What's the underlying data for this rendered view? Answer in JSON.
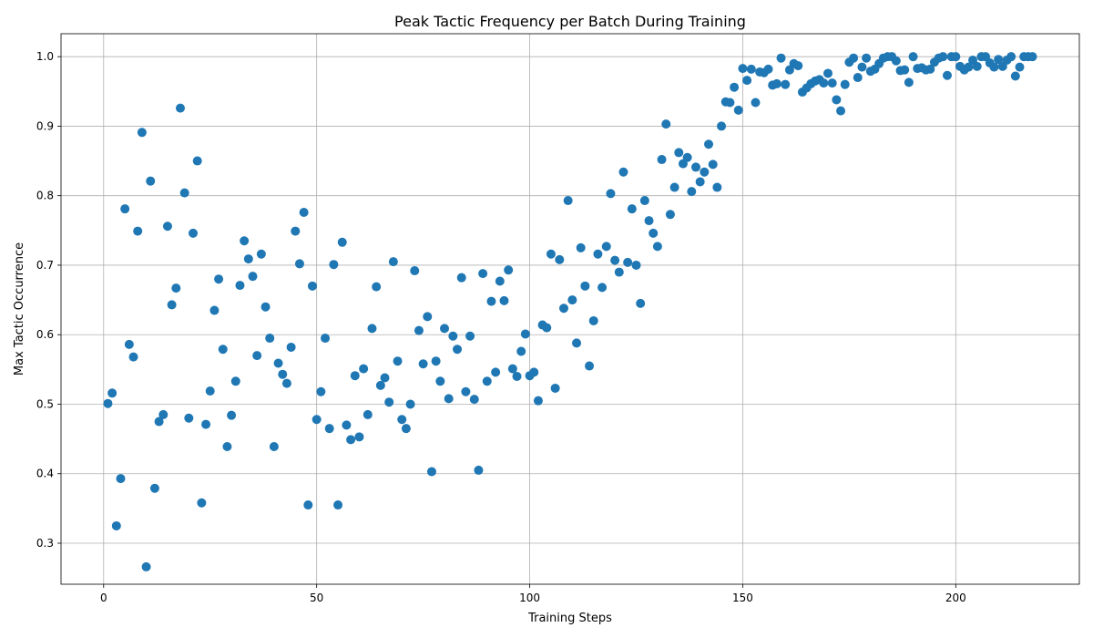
{
  "chart_data": {
    "type": "scatter",
    "title": "Peak Tactic Frequency per Batch During Training",
    "xlabel": "Training Steps",
    "ylabel": "Max Tactic Occurrence",
    "xlim": [
      -10,
      229
    ],
    "ylim": [
      0.241,
      1.033
    ],
    "xticks": [
      0,
      50,
      100,
      150,
      200
    ],
    "yticks": [
      0.3,
      0.4,
      0.5,
      0.6,
      0.7,
      0.8,
      0.9,
      1.0
    ],
    "grid": true,
    "marker_color": "#1f77b4",
    "series": [
      {
        "points": [
          [
            1,
            0.501
          ],
          [
            2,
            0.516
          ],
          [
            3,
            0.325
          ],
          [
            4,
            0.393
          ],
          [
            5,
            0.781
          ],
          [
            6,
            0.586
          ],
          [
            7,
            0.568
          ],
          [
            8,
            0.749
          ],
          [
            9,
            0.891
          ],
          [
            10,
            0.266
          ],
          [
            11,
            0.821
          ],
          [
            12,
            0.379
          ],
          [
            13,
            0.475
          ],
          [
            14,
            0.485
          ],
          [
            15,
            0.756
          ],
          [
            16,
            0.643
          ],
          [
            17,
            0.667
          ],
          [
            18,
            0.926
          ],
          [
            19,
            0.804
          ],
          [
            20,
            0.48
          ],
          [
            21,
            0.746
          ],
          [
            22,
            0.85
          ],
          [
            23,
            0.358
          ],
          [
            24,
            0.471
          ],
          [
            25,
            0.519
          ],
          [
            26,
            0.635
          ],
          [
            27,
            0.68
          ],
          [
            28,
            0.579
          ],
          [
            29,
            0.439
          ],
          [
            30,
            0.484
          ],
          [
            31,
            0.533
          ],
          [
            32,
            0.671
          ],
          [
            33,
            0.735
          ],
          [
            34,
            0.709
          ],
          [
            35,
            0.684
          ],
          [
            36,
            0.57
          ],
          [
            37,
            0.716
          ],
          [
            38,
            0.64
          ],
          [
            39,
            0.595
          ],
          [
            40,
            0.439
          ],
          [
            41,
            0.559
          ],
          [
            42,
            0.543
          ],
          [
            43,
            0.53
          ],
          [
            44,
            0.582
          ],
          [
            45,
            0.749
          ],
          [
            46,
            0.702
          ],
          [
            47,
            0.776
          ],
          [
            48,
            0.355
          ],
          [
            49,
            0.67
          ],
          [
            50,
            0.478
          ],
          [
            51,
            0.518
          ],
          [
            52,
            0.595
          ],
          [
            53,
            0.465
          ],
          [
            54,
            0.701
          ],
          [
            55,
            0.355
          ],
          [
            56,
            0.733
          ],
          [
            57,
            0.47
          ],
          [
            58,
            0.449
          ],
          [
            59,
            0.541
          ],
          [
            60,
            0.453
          ],
          [
            61,
            0.551
          ],
          [
            62,
            0.485
          ],
          [
            63,
            0.609
          ],
          [
            64,
            0.669
          ],
          [
            65,
            0.527
          ],
          [
            66,
            0.538
          ],
          [
            67,
            0.503
          ],
          [
            68,
            0.705
          ],
          [
            69,
            0.562
          ],
          [
            70,
            0.478
          ],
          [
            71,
            0.465
          ],
          [
            72,
            0.5
          ],
          [
            73,
            0.692
          ],
          [
            74,
            0.606
          ],
          [
            75,
            0.558
          ],
          [
            76,
            0.626
          ],
          [
            77,
            0.403
          ],
          [
            78,
            0.562
          ],
          [
            79,
            0.533
          ],
          [
            80,
            0.609
          ],
          [
            81,
            0.508
          ],
          [
            82,
            0.598
          ],
          [
            83,
            0.579
          ],
          [
            84,
            0.682
          ],
          [
            85,
            0.518
          ],
          [
            86,
            0.598
          ],
          [
            87,
            0.507
          ],
          [
            88,
            0.405
          ],
          [
            89,
            0.688
          ],
          [
            90,
            0.533
          ],
          [
            91,
            0.648
          ],
          [
            92,
            0.546
          ],
          [
            93,
            0.677
          ],
          [
            94,
            0.649
          ],
          [
            95,
            0.693
          ],
          [
            96,
            0.551
          ],
          [
            97,
            0.54
          ],
          [
            98,
            0.576
          ],
          [
            99,
            0.601
          ],
          [
            100,
            0.541
          ],
          [
            101,
            0.546
          ],
          [
            102,
            0.505
          ],
          [
            103,
            0.614
          ],
          [
            104,
            0.61
          ],
          [
            105,
            0.716
          ],
          [
            106,
            0.523
          ],
          [
            107,
            0.708
          ],
          [
            108,
            0.638
          ],
          [
            109,
            0.793
          ],
          [
            110,
            0.65
          ],
          [
            111,
            0.588
          ],
          [
            112,
            0.725
          ],
          [
            113,
            0.67
          ],
          [
            114,
            0.555
          ],
          [
            115,
            0.62
          ],
          [
            116,
            0.716
          ],
          [
            117,
            0.668
          ],
          [
            118,
            0.727
          ],
          [
            119,
            0.803
          ],
          [
            120,
            0.707
          ],
          [
            121,
            0.69
          ],
          [
            122,
            0.834
          ],
          [
            123,
            0.704
          ],
          [
            124,
            0.781
          ],
          [
            125,
            0.7
          ],
          [
            126,
            0.645
          ],
          [
            127,
            0.793
          ],
          [
            128,
            0.764
          ],
          [
            129,
            0.746
          ],
          [
            130,
            0.727
          ],
          [
            131,
            0.852
          ],
          [
            132,
            0.903
          ],
          [
            133,
            0.773
          ],
          [
            134,
            0.812
          ],
          [
            135,
            0.862
          ],
          [
            136,
            0.846
          ],
          [
            137,
            0.855
          ],
          [
            138,
            0.806
          ],
          [
            139,
            0.841
          ],
          [
            140,
            0.82
          ],
          [
            141,
            0.834
          ],
          [
            142,
            0.874
          ],
          [
            143,
            0.845
          ],
          [
            144,
            0.812
          ],
          [
            145,
            0.9
          ],
          [
            146,
            0.935
          ],
          [
            147,
            0.934
          ],
          [
            148,
            0.956
          ],
          [
            149,
            0.923
          ],
          [
            150,
            0.983
          ],
          [
            151,
            0.966
          ],
          [
            152,
            0.982
          ],
          [
            153,
            0.934
          ],
          [
            154,
            0.978
          ],
          [
            155,
            0.977
          ],
          [
            156,
            0.982
          ],
          [
            157,
            0.959
          ],
          [
            158,
            0.961
          ],
          [
            159,
            0.998
          ],
          [
            160,
            0.96
          ],
          [
            161,
            0.981
          ],
          [
            162,
            0.99
          ],
          [
            163,
            0.987
          ],
          [
            164,
            0.949
          ],
          [
            165,
            0.955
          ],
          [
            166,
            0.961
          ],
          [
            167,
            0.965
          ],
          [
            168,
            0.967
          ],
          [
            169,
            0.962
          ],
          [
            170,
            0.976
          ],
          [
            171,
            0.962
          ],
          [
            172,
            0.938
          ],
          [
            173,
            0.922
          ],
          [
            174,
            0.96
          ],
          [
            175,
            0.992
          ],
          [
            176,
            0.998
          ],
          [
            177,
            0.97
          ],
          [
            178,
            0.985
          ],
          [
            179,
            0.998
          ],
          [
            180,
            0.979
          ],
          [
            181,
            0.982
          ],
          [
            182,
            0.99
          ],
          [
            183,
            0.998
          ],
          [
            184,
            1.0
          ],
          [
            185,
            1.0
          ],
          [
            186,
            0.994
          ],
          [
            187,
            0.98
          ],
          [
            188,
            0.981
          ],
          [
            189,
            0.963
          ],
          [
            190,
            1.0
          ],
          [
            191,
            0.983
          ],
          [
            192,
            0.984
          ],
          [
            193,
            0.981
          ],
          [
            194,
            0.982
          ],
          [
            195,
            0.992
          ],
          [
            196,
            0.998
          ],
          [
            197,
            1.0
          ],
          [
            198,
            0.973
          ],
          [
            199,
            1.0
          ],
          [
            200,
            1.0
          ],
          [
            201,
            0.986
          ],
          [
            202,
            0.981
          ],
          [
            203,
            0.985
          ],
          [
            204,
            0.995
          ],
          [
            205,
            0.986
          ],
          [
            206,
            1.0
          ],
          [
            207,
            1.0
          ],
          [
            208,
            0.991
          ],
          [
            209,
            0.985
          ],
          [
            210,
            0.996
          ],
          [
            211,
            0.986
          ],
          [
            212,
            0.995
          ],
          [
            213,
            1.0
          ],
          [
            214,
            0.972
          ],
          [
            215,
            0.985
          ],
          [
            216,
            1.0
          ],
          [
            217,
            1.0
          ],
          [
            218,
            1.0
          ]
        ]
      }
    ]
  }
}
